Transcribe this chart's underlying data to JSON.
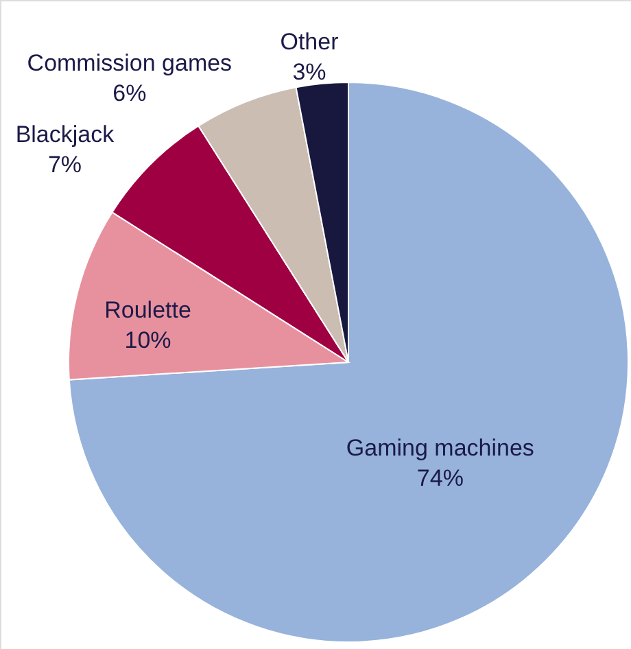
{
  "chart_data": {
    "type": "pie",
    "categories": [
      "Gaming machines",
      "Roulette",
      "Blackjack",
      "Commission games",
      "Other"
    ],
    "values": [
      74,
      10,
      7,
      6,
      3
    ],
    "value_labels": [
      "74%",
      "10%",
      "7%",
      "6%",
      "3%"
    ],
    "colors": [
      "#97b3db",
      "#e8919e",
      "#9e0042",
      "#cbbdb2",
      "#18173e"
    ]
  }
}
